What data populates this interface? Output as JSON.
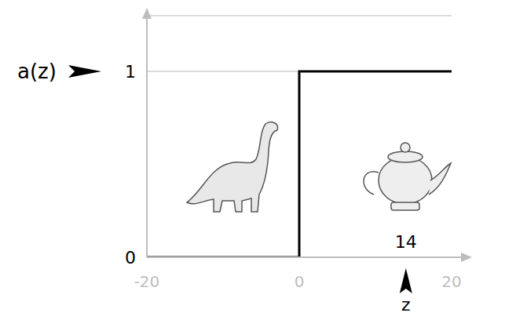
{
  "chart_data": {
    "type": "line",
    "x": [
      -20,
      0,
      0,
      20
    ],
    "values": [
      0,
      0,
      1,
      1
    ],
    "xlim": [
      -20,
      20
    ],
    "ylim": [
      0,
      1.3
    ],
    "xticks": [
      -20,
      0,
      20
    ],
    "yticks": [
      0,
      1
    ],
    "grid": true,
    "color": "#000000",
    "annotations": [
      {
        "text": "a(z)",
        "y": 1
      },
      {
        "text": "14",
        "x": 14
      },
      {
        "text": "z",
        "x": 14
      }
    ]
  }
}
